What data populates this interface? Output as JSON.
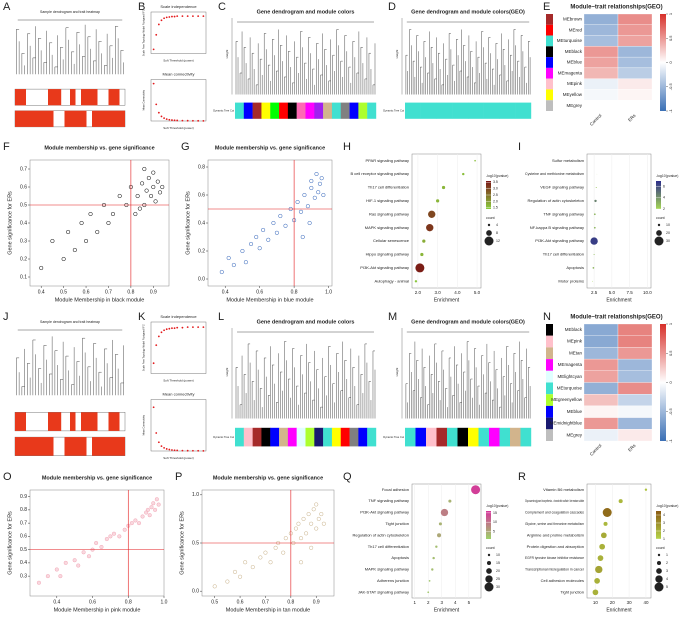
{
  "chart_data": [
    {
      "label": "A",
      "type": "sample-dendrogram",
      "title": "Sample dendrogram and trait heatmap"
    },
    {
      "label": "B",
      "type": "soft-threshold",
      "xlabel": "Soft Threshold (power)",
      "x": [
        1,
        2,
        3,
        4,
        5,
        6,
        7,
        8,
        9,
        10,
        12,
        14,
        16,
        18,
        20
      ],
      "xlim": [
        0,
        21
      ],
      "series": [
        {
          "name": "Scale independence",
          "ylabel": "Scale Free Topology Model Fit,signed R^2",
          "color": "#e31a1c",
          "ylim": [
            0,
            1
          ],
          "values": [
            0.1,
            0.45,
            0.7,
            0.8,
            0.85,
            0.87,
            0.88,
            0.89,
            0.89,
            0.9,
            0.9,
            0.9,
            0.9,
            0.9,
            0.9
          ]
        },
        {
          "name": "Mean connectivity",
          "ylabel": "Mean Connectivity",
          "color": "#e31a1c",
          "ylim": [
            0,
            1000
          ],
          "values": [
            900,
            400,
            200,
            110,
            70,
            45,
            30,
            22,
            17,
            13,
            9,
            7,
            5,
            4,
            3
          ]
        }
      ]
    },
    {
      "label": "C",
      "type": "module-dendrogram",
      "title": "Gene dendrogram and module colors",
      "ylabel": "Height",
      "strip_label": "Dynamic Tree Cut",
      "module_colors": [
        "#40e0d0",
        "#0000ff",
        "#a52a2a",
        "#ffff00",
        "#00ff00",
        "#ff0000",
        "#000000",
        "#ff69b4",
        "#ff00ff",
        "#a020f0",
        "#d2b48c",
        "#40e0d0",
        "#808080",
        "#0000ff",
        "#adff2f",
        "#40e0d0"
      ]
    },
    {
      "label": "D",
      "type": "module-dendrogram",
      "title": "Gene dendrogram and module colors(GEO)",
      "ylabel": "Height",
      "strip_label": "Dynamic Tree Cut",
      "module_colors": [
        "#40e0d0",
        "#40e0d0",
        "#40e0d0",
        "#40e0d0",
        "#40e0d0",
        "#40e0d0",
        "#40e0d0",
        "#40e0d0"
      ]
    },
    {
      "label": "E",
      "type": "heatmap",
      "title": "Module−trait relationships(GEO)",
      "rows": [
        "MEbrown",
        "MEred",
        "MEturquoise",
        "MEblack",
        "MEblue",
        "MEmagenta",
        "MEpink",
        "MEyellow",
        "MEgrey"
      ],
      "row_colors": [
        "#a52a2a",
        "#ff0000",
        "#40e0d0",
        "#000000",
        "#0000ff",
        "#ff00ff",
        "#ffc0cb",
        "#ffff00",
        "#bebebe"
      ],
      "columns": [
        "Control",
        "ERs"
      ],
      "values": [
        [
          -0.55,
          0.55
        ],
        [
          -0.5,
          0.5
        ],
        [
          -0.45,
          0.45
        ],
        [
          0.5,
          -0.5
        ],
        [
          0.45,
          -0.45
        ],
        [
          0.35,
          -0.35
        ],
        [
          -0.1,
          0.1
        ],
        [
          -0.05,
          0.05
        ],
        [
          0,
          0
        ]
      ],
      "zlim": [
        -1,
        1
      ],
      "zticks": [
        1,
        0.5,
        0,
        -0.5,
        -1
      ],
      "color_low": "#3a6fb5",
      "color_mid": "#ffffff",
      "color_high": "#d7302a"
    },
    {
      "label": "F",
      "type": "scatter",
      "title": "Module membership vs. gene significance",
      "xlabel": "Module Membership in black module",
      "ylabel": "Gene significance for ERs",
      "color": "#000000",
      "fill": "none",
      "xlim": [
        0.35,
        0.97
      ],
      "ylim": [
        0.05,
        0.75
      ],
      "xticks": [
        0.4,
        0.5,
        0.6,
        0.7,
        0.8,
        0.9
      ],
      "yticks": [
        0.1,
        0.2,
        0.3,
        0.4,
        0.5,
        0.6,
        0.7
      ],
      "reference_lines": {
        "x": 0.8,
        "y": 0.5,
        "color": "#e31a1c"
      },
      "x": [
        0.4,
        0.45,
        0.5,
        0.52,
        0.55,
        0.58,
        0.6,
        0.62,
        0.65,
        0.68,
        0.7,
        0.72,
        0.75,
        0.78,
        0.8,
        0.82,
        0.83,
        0.85,
        0.86,
        0.87,
        0.88,
        0.89,
        0.9,
        0.9,
        0.91,
        0.92,
        0.93,
        0.94,
        0.84,
        0.86
      ],
      "y": [
        0.15,
        0.3,
        0.2,
        0.35,
        0.25,
        0.4,
        0.3,
        0.45,
        0.35,
        0.5,
        0.4,
        0.45,
        0.55,
        0.5,
        0.6,
        0.45,
        0.55,
        0.62,
        0.5,
        0.58,
        0.65,
        0.55,
        0.6,
        0.68,
        0.52,
        0.63,
        0.57,
        0.6,
        0.48,
        0.7
      ]
    },
    {
      "label": "G",
      "type": "scatter",
      "title": "Module membership vs. gene significance",
      "xlabel": "Module Membership in blue module",
      "ylabel": "Gene significance for ERs",
      "color": "#2b5fb8",
      "fill": "none",
      "xlim": [
        0.3,
        1.02
      ],
      "ylim": [
        -0.05,
        0.85
      ],
      "xticks": [
        0.4,
        0.6,
        0.8,
        {
          "value": 1,
          "label": "1.0"
        }
      ],
      "yticks": [
        {
          "value": 0,
          "label": "0.0"
        },
        0.2,
        0.4,
        0.6,
        0.8
      ],
      "reference_lines": {
        "x": 0.8,
        "y": 0.5,
        "color": "#e31a1c"
      },
      "x": [
        0.38,
        0.42,
        0.45,
        0.5,
        0.52,
        0.55,
        0.58,
        0.6,
        0.62,
        0.65,
        0.68,
        0.7,
        0.72,
        0.75,
        0.78,
        0.8,
        0.82,
        0.84,
        0.86,
        0.88,
        0.9,
        0.9,
        0.92,
        0.93,
        0.94,
        0.95,
        0.96,
        0.97,
        0.85,
        0.89
      ],
      "y": [
        0.05,
        0.15,
        0.1,
        0.2,
        0.12,
        0.25,
        0.3,
        0.22,
        0.35,
        0.28,
        0.4,
        0.33,
        0.45,
        0.38,
        0.5,
        0.42,
        0.55,
        0.48,
        0.6,
        0.52,
        0.65,
        0.7,
        0.58,
        0.75,
        0.62,
        0.68,
        0.72,
        0.6,
        0.3,
        0.4
      ]
    },
    {
      "label": "H",
      "type": "dotplot",
      "xlabel": "Enrichment",
      "categories": [
        "PPAR signaling pathway",
        "B cell receptor signaling pathway",
        "Th17 cell differentiation",
        "HIF-1 signaling pathway",
        "Ras signaling pathway",
        "MAPK signaling pathway",
        "Cellular senescence",
        "Hippo signaling pathway",
        "PI3K-Akt signaling pathway",
        "Autophagy - animal"
      ],
      "values": [
        4.9,
        4.3,
        3.3,
        3.0,
        2.7,
        2.6,
        2.3,
        2.2,
        2.1,
        1.9
      ],
      "counts": [
        3,
        4,
        5,
        5,
        10,
        10,
        5,
        5,
        12,
        4
      ],
      "pvalues": [
        1.6,
        1.6,
        1.7,
        1.7,
        3.0,
        3.2,
        1.8,
        1.7,
        3.5,
        1.5
      ],
      "xlim": [
        1.7,
        5.2
      ],
      "xticks": [
        {
          "value": 2,
          "label": "2.0"
        },
        {
          "value": 3,
          "label": "3.0"
        },
        {
          "value": 4,
          "label": "4.0"
        },
        {
          "value": 5,
          "label": "5.0"
        }
      ],
      "color_title": "-log10(pvalue)",
      "clim": [
        1.4,
        3.6
      ],
      "cticks": [
        1.5,
        {
          "value": 2,
          "label": "2.0"
        },
        2.5,
        {
          "value": 3,
          "label": "3.0"
        },
        3.5
      ],
      "color_low": "#8ccf3f",
      "color_high": "#7a1414",
      "count_title": "count",
      "count_ticks": [
        4,
        8,
        12
      ]
    },
    {
      "label": "I",
      "type": "dotplot",
      "xlabel": "Enrichment",
      "categories": [
        "Sulfur metabolism",
        "Cysteine and methionine metabolism",
        "VEGF signaling pathway",
        "Regulation of actin cytoskeleton",
        "TNF signaling pathway",
        "NF-kappa B signaling pathway",
        "PI3K-Akt signaling pathway",
        "Th17 cell differentiation",
        "Apoptosis",
        "Motor proteins"
      ],
      "values": [
        9.8,
        2.9,
        2.8,
        2.7,
        2.6,
        2.6,
        2.5,
        2.5,
        2.4,
        2.3
      ],
      "counts": [
        2,
        4,
        6,
        10,
        8,
        8,
        25,
        6,
        8,
        5
      ],
      "pvalues": [
        2.5,
        2.2,
        2.6,
        4.5,
        3.0,
        3.0,
        6.5,
        2.8,
        3.0,
        2.2
      ],
      "xlim": [
        1.5,
        10.5
      ],
      "xticks": [
        2.5,
        {
          "value": 5,
          "label": "5.0"
        },
        7.5,
        {
          "value": 10,
          "label": "10.0"
        }
      ],
      "color_title": "-log10(pvalue)",
      "clim": [
        2,
        7
      ],
      "cticks": [
        2,
        4,
        6
      ],
      "color_low": "#a6d854",
      "color_high": "#2c2c8a",
      "count_title": "count",
      "count_ticks": [
        10,
        20,
        30
      ]
    },
    {
      "label": "J",
      "type": "sample-dendrogram",
      "title": "Sample dendrogram and trait heatmap"
    },
    {
      "label": "K",
      "type": "soft-threshold",
      "xlabel": "Soft Threshold (power)",
      "x": [
        1,
        2,
        3,
        4,
        5,
        6,
        7,
        8,
        9,
        10,
        12,
        14,
        16,
        18,
        20
      ],
      "xlim": [
        0,
        21
      ],
      "series": [
        {
          "name": "Scale independence",
          "ylabel": "Scale Free Topology Model Fit,signed R^2",
          "color": "#e31a1c",
          "ylim": [
            0,
            1
          ],
          "values": [
            0.2,
            0.55,
            0.72,
            0.8,
            0.84,
            0.86,
            0.87,
            0.88,
            0.88,
            0.89,
            0.89,
            0.9,
            0.9,
            0.9,
            0.9
          ]
        },
        {
          "name": "Mean connectivity",
          "ylabel": "Mean Connectivity",
          "color": "#e31a1c",
          "ylim": [
            0,
            1000
          ],
          "values": [
            850,
            350,
            170,
            95,
            60,
            40,
            28,
            20,
            15,
            12,
            8,
            6,
            5,
            4,
            3
          ]
        }
      ]
    },
    {
      "label": "L",
      "type": "module-dendrogram",
      "title": "Gene dendrogram and module colors",
      "ylabel": "Height",
      "strip_label": "Dynamic Tree Cut",
      "module_colors": [
        "#40e0d0",
        "#ffc0cb",
        "#a52a2a",
        "#000000",
        "#0000ff",
        "#d2b48c",
        "#ff00ff",
        "#e0ffff",
        "#adff2f",
        "#191970",
        "#40e0d0",
        "#ffff00",
        "#ff0000",
        "#808080",
        "#0000ff",
        "#40e0d0"
      ]
    },
    {
      "label": "M",
      "type": "module-dendrogram",
      "title": "Gene dendrogram and module colors(GEO)",
      "ylabel": "Height",
      "strip_label": "Dynamic Tree Cut",
      "module_colors": [
        "#40e0d0",
        "#0000ff",
        "#ffc0cb",
        "#a52a2a",
        "#40e0d0",
        "#000000",
        "#ffff00",
        "#40e0d0",
        "#ff00ff",
        "#40e0d0",
        "#d2b48c",
        "#40e0d0"
      ]
    },
    {
      "label": "N",
      "type": "heatmap",
      "title": "Module−trait relationships(GEO)",
      "rows": [
        "MEblack",
        "MEpink",
        "MEtan",
        "MEmagenta",
        "MElightcyan",
        "MEturquoise",
        "MEgreenyellow",
        "MEblue",
        "MEmidnightblue",
        "MEgrey"
      ],
      "row_colors": [
        "#000000",
        "#ffc0cb",
        "#d2b48c",
        "#ff00ff",
        "#e0ffff",
        "#40e0d0",
        "#adff2f",
        "#0000ff",
        "#191970",
        "#bebebe"
      ],
      "columns": [
        "Control",
        "ERs"
      ],
      "values": [
        [
          -0.6,
          0.6
        ],
        [
          -0.6,
          0.6
        ],
        [
          -0.5,
          0.5
        ],
        [
          0.5,
          -0.5
        ],
        [
          0.45,
          -0.45
        ],
        [
          -0.55,
          0.55
        ],
        [
          0.3,
          -0.3
        ],
        [
          0.05,
          -0.05
        ],
        [
          0.5,
          -0.5
        ],
        [
          -0.1,
          0.1
        ]
      ],
      "zlim": [
        -1,
        1
      ],
      "zticks": [
        1,
        0.5,
        0,
        -0.5,
        -1
      ],
      "color_low": "#3a6fb5",
      "color_mid": "#ffffff",
      "color_high": "#d7302a"
    },
    {
      "label": "O",
      "type": "scatter",
      "title": "Module membership vs. gene significance",
      "xlabel": "Module Membership in pink module",
      "ylabel": "Gene significance for ERs",
      "color": "#f2a7b6",
      "fill": "#f7c7d1",
      "xlim": [
        0.25,
        1.0
      ],
      "ylim": [
        0.15,
        0.95
      ],
      "xticks": [
        0.4,
        0.6,
        0.8,
        {
          "value": 1,
          "label": "1.0"
        }
      ],
      "yticks": [
        0.3,
        0.4,
        0.5,
        0.6,
        0.7,
        0.8,
        0.9
      ],
      "reference_lines": {
        "x": 0.8,
        "y": 0.5,
        "color": "#e31a1c"
      },
      "x": [
        0.3,
        0.35,
        0.4,
        0.42,
        0.45,
        0.5,
        0.52,
        0.55,
        0.58,
        0.6,
        0.62,
        0.65,
        0.68,
        0.7,
        0.72,
        0.75,
        0.78,
        0.8,
        0.82,
        0.84,
        0.86,
        0.88,
        0.9,
        0.91,
        0.92,
        0.93,
        0.94,
        0.95,
        0.96,
        0.97
      ],
      "y": [
        0.25,
        0.3,
        0.35,
        0.3,
        0.4,
        0.42,
        0.38,
        0.48,
        0.45,
        0.5,
        0.55,
        0.52,
        0.58,
        0.6,
        0.62,
        0.6,
        0.65,
        0.68,
        0.7,
        0.72,
        0.7,
        0.75,
        0.78,
        0.8,
        0.76,
        0.82,
        0.85,
        0.8,
        0.88,
        0.84
      ]
    },
    {
      "label": "P",
      "type": "scatter",
      "title": "Module membership vs. gene significance",
      "xlabel": "Module Membership in tan module",
      "ylabel": "Gene significance for ERs",
      "color": "#c9b28a",
      "fill": "none",
      "xlim": [
        0.45,
        0.97
      ],
      "ylim": [
        -0.05,
        1.05
      ],
      "xticks": [
        0.5,
        0.6,
        0.7,
        0.8,
        0.9
      ],
      "yticks": [
        {
          "value": 0,
          "label": "0.0"
        },
        0.5,
        {
          "value": 1,
          "label": "1.0"
        }
      ],
      "reference_lines": {
        "x": 0.8,
        "y": 0.5,
        "color": "#e31a1c"
      },
      "x": [
        0.5,
        0.55,
        0.58,
        0.6,
        0.62,
        0.65,
        0.68,
        0.7,
        0.72,
        0.74,
        0.75,
        0.77,
        0.78,
        0.8,
        0.81,
        0.82,
        0.83,
        0.84,
        0.85,
        0.86,
        0.87,
        0.88,
        0.89,
        0.9,
        0.9,
        0.91,
        0.92,
        0.93,
        0.84,
        0.88
      ],
      "y": [
        0.05,
        0.1,
        0.2,
        0.15,
        0.3,
        0.25,
        0.35,
        0.4,
        0.3,
        0.45,
        0.5,
        0.4,
        0.55,
        0.6,
        0.5,
        0.65,
        0.7,
        0.55,
        0.75,
        0.6,
        0.8,
        0.7,
        0.85,
        0.65,
        0.9,
        0.75,
        0.8,
        0.7,
        0.3,
        0.45
      ]
    },
    {
      "label": "Q",
      "type": "dotplot",
      "xlabel": "Enrichment",
      "categories": [
        "Focal adhesion",
        "TNF signaling pathway",
        "PI3K-Akt signaling pathway",
        "Tight junction",
        "Regulation of actin cytoskeleton",
        "Th17 cell differentiation",
        "Apoptosis",
        "MAPK signaling pathway",
        "Adherens junction",
        "JAK-STAT signaling pathway"
      ],
      "values": [
        5.5,
        3.6,
        3.2,
        2.9,
        2.8,
        2.6,
        2.4,
        2.3,
        2.1,
        2.0
      ],
      "counts": [
        30,
        12,
        25,
        12,
        15,
        10,
        10,
        10,
        8,
        8
      ],
      "pvalues": [
        15,
        4,
        9,
        4,
        5,
        3,
        3,
        3,
        2,
        2
      ],
      "xlim": [
        0.8,
        5.9
      ],
      "xticks": [
        1,
        2,
        3,
        4,
        5
      ],
      "color_title": "-log10(pvalue)",
      "clim": [
        1,
        16
      ],
      "cticks": [
        5,
        10,
        15
      ],
      "color_low": "#9ed36a",
      "color_high": "#d6339b",
      "count_title": "count",
      "count_ticks": [
        10,
        15,
        20,
        25,
        30
      ]
    },
    {
      "label": "R",
      "type": "dotplot",
      "xlabel": "Enrichment",
      "categories": [
        "Vitamin B6 metabolism",
        "Glycosaminoglycan biosynthesis - chondroitin sulfate / dermatan sulfate",
        "Complement and coagulation cascades",
        "Glycine, serine and threonine metabolism",
        "Arginine and proline metabolism",
        "Protein digestion and absorption",
        "EGFR tyrosine kinase inhibitor resistance",
        "Transcriptional misregulation in cancer",
        "Cell adhesion molecules",
        "Tight junction"
      ],
      "values": [
        40,
        25,
        17,
        16,
        15,
        14,
        13,
        12,
        11,
        10
      ],
      "counts": [
        1,
        2,
        5,
        2,
        3,
        3,
        3,
        4,
        3,
        3
      ],
      "pvalues": [
        1.5,
        1.8,
        4.0,
        1.8,
        2.2,
        2.0,
        2.0,
        2.4,
        2.0,
        2.0
      ],
      "xlim": [
        5,
        43
      ],
      "xticks": [
        10,
        20,
        30,
        40
      ],
      "color_title": "-log10(pvalue)",
      "clim": [
        1,
        4.5
      ],
      "cticks": [
        1,
        2,
        3,
        4
      ],
      "color_low": "#b5d44a",
      "color_high": "#8a5a12",
      "count_title": "count",
      "count_ticks": [
        1,
        2,
        3,
        4,
        5
      ]
    }
  ]
}
